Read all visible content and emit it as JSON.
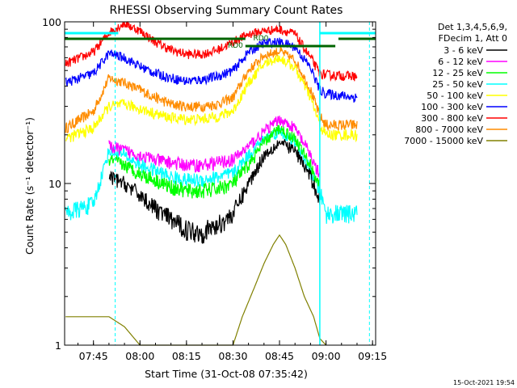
{
  "chart_data": {
    "type": "line",
    "title": "RHESSI Observing Summary Count Rates",
    "ylabel": "Count Rate (s⁻¹ detector⁻¹)",
    "xlabel": "Start Time (31-Oct-08 07:35:42)",
    "yscale": "log",
    "ylim": [
      1,
      100
    ],
    "xlim": [
      "07:35:42",
      "09:16:00"
    ],
    "x_ticks": [
      "07:45",
      "08:00",
      "08:15",
      "08:30",
      "08:45",
      "09:00",
      "09:15"
    ],
    "y_ticks": [
      "1",
      "10",
      "100"
    ],
    "legend_header": [
      "Det 1,3,4,5,6,9,",
      "FDecim 1, Att 0"
    ],
    "legend_position": "right",
    "flags": [
      {
        "label": "RD0",
        "color": "#006400"
      },
      {
        "label": "RD0",
        "color": "#006400"
      }
    ],
    "footer_date": "15-Oct-2021 19:54",
    "series": [
      {
        "name": "3 - 6 keV",
        "color": "#000000",
        "x": [
          "07:50",
          "07:55",
          "08:00",
          "08:05",
          "08:10",
          "08:15",
          "08:20",
          "08:25",
          "08:30",
          "08:35",
          "08:40",
          "08:45",
          "08:50",
          "08:55",
          "08:58"
        ],
        "y": [
          11,
          10,
          8.5,
          7,
          6,
          5.2,
          5,
          5.5,
          6.5,
          10,
          15,
          18,
          16,
          11,
          8
        ]
      },
      {
        "name": "6 - 12 keV",
        "color": "#ff00ff",
        "x": [
          "07:50",
          "07:55",
          "08:00",
          "08:05",
          "08:10",
          "08:15",
          "08:20",
          "08:25",
          "08:30",
          "08:35",
          "08:40",
          "08:45",
          "08:50",
          "08:55",
          "08:58"
        ],
        "y": [
          17,
          16,
          15,
          14,
          13.5,
          13,
          13,
          13.5,
          14,
          17,
          21,
          25,
          22,
          15,
          11
        ]
      },
      {
        "name": "12 - 25 keV",
        "color": "#00ff00",
        "x": [
          "07:50",
          "07:55",
          "08:00",
          "08:05",
          "08:10",
          "08:15",
          "08:20",
          "08:25",
          "08:30",
          "08:35",
          "08:40",
          "08:45",
          "08:50",
          "08:55",
          "08:58"
        ],
        "y": [
          14,
          13,
          11.5,
          10.5,
          9.5,
          9,
          9,
          9.3,
          10,
          13,
          18,
          22,
          19,
          13,
          9.5
        ]
      },
      {
        "name": "25 - 50 keV",
        "color": "#00ffff",
        "x": [
          "07:36",
          "07:45",
          "07:50",
          "07:55",
          "08:00",
          "08:05",
          "08:10",
          "08:15",
          "08:20",
          "08:25",
          "08:30",
          "08:35",
          "08:40",
          "08:45",
          "08:50",
          "08:55",
          "08:58",
          "09:00",
          "09:10"
        ],
        "y": [
          6.5,
          7.5,
          16,
          15,
          13,
          12,
          11,
          10.5,
          10.5,
          11,
          11.5,
          15,
          19,
          21,
          18,
          12,
          9,
          6.5,
          6.5
        ]
      },
      {
        "name": "50 - 100 keV",
        "color": "#ffff00",
        "x": [
          "07:36",
          "07:45",
          "07:50",
          "07:55",
          "08:00",
          "08:05",
          "08:10",
          "08:15",
          "08:20",
          "08:25",
          "08:30",
          "08:35",
          "08:40",
          "08:45",
          "08:50",
          "08:55",
          "08:58",
          "09:00",
          "09:10"
        ],
        "y": [
          19,
          22,
          30,
          31,
          29,
          27,
          25.5,
          25,
          25,
          26,
          28,
          42,
          55,
          60,
          52,
          34,
          23,
          20,
          20
        ]
      },
      {
        "name": "100 - 300 keV",
        "color": "#0000ff",
        "x": [
          "07:36",
          "07:45",
          "07:50",
          "07:55",
          "08:00",
          "08:05",
          "08:10",
          "08:15",
          "08:20",
          "08:25",
          "08:30",
          "08:35",
          "08:40",
          "08:45",
          "08:50",
          "08:55",
          "08:58",
          "09:00",
          "09:10"
        ],
        "y": [
          42,
          48,
          64,
          60,
          53,
          48,
          45,
          43,
          44,
          46,
          50,
          65,
          74,
          75,
          70,
          52,
          38,
          36,
          34
        ]
      },
      {
        "name": "300 - 800 keV",
        "color": "#ff0000",
        "x": [
          "07:36",
          "07:45",
          "07:50",
          "07:55",
          "08:00",
          "08:05",
          "08:10",
          "08:15",
          "08:20",
          "08:25",
          "08:30",
          "08:35",
          "08:40",
          "08:45",
          "08:50",
          "08:55",
          "08:58",
          "09:00",
          "09:10"
        ],
        "y": [
          55,
          65,
          86,
          98,
          88,
          75,
          67,
          63,
          63,
          67,
          75,
          84,
          88,
          90,
          84,
          60,
          48,
          47,
          46
        ]
      },
      {
        "name": "800 - 7000 keV",
        "color": "#ff8c00",
        "x": [
          "07:36",
          "07:45",
          "07:50",
          "07:55",
          "08:00",
          "08:05",
          "08:10",
          "08:15",
          "08:20",
          "08:25",
          "08:30",
          "08:35",
          "08:40",
          "08:45",
          "08:50",
          "08:55",
          "08:58",
          "09:00",
          "09:10"
        ],
        "y": [
          22,
          28,
          45,
          42,
          38,
          34,
          31,
          30,
          30,
          31,
          34,
          50,
          62,
          66,
          58,
          38,
          26,
          23,
          23
        ]
      },
      {
        "name": "7000 - 15000 keV",
        "color": "#808000",
        "x": [
          "07:36",
          "07:45",
          "07:50",
          "07:55",
          "08:00",
          "08:05",
          "08:10",
          "08:15",
          "08:20",
          "08:25",
          "08:30",
          "08:33",
          "08:37",
          "08:40",
          "08:43",
          "08:45",
          "08:47",
          "08:50",
          "08:53",
          "08:56",
          "08:58",
          "09:00"
        ],
        "y": [
          1.5,
          1.5,
          1.5,
          1.3,
          1.0,
          1.0,
          1.0,
          1.0,
          1.0,
          1.0,
          1.0,
          1.5,
          2.3,
          3.2,
          4.2,
          4.8,
          4.2,
          3.0,
          2.0,
          1.5,
          1.1,
          1.0
        ]
      }
    ]
  }
}
